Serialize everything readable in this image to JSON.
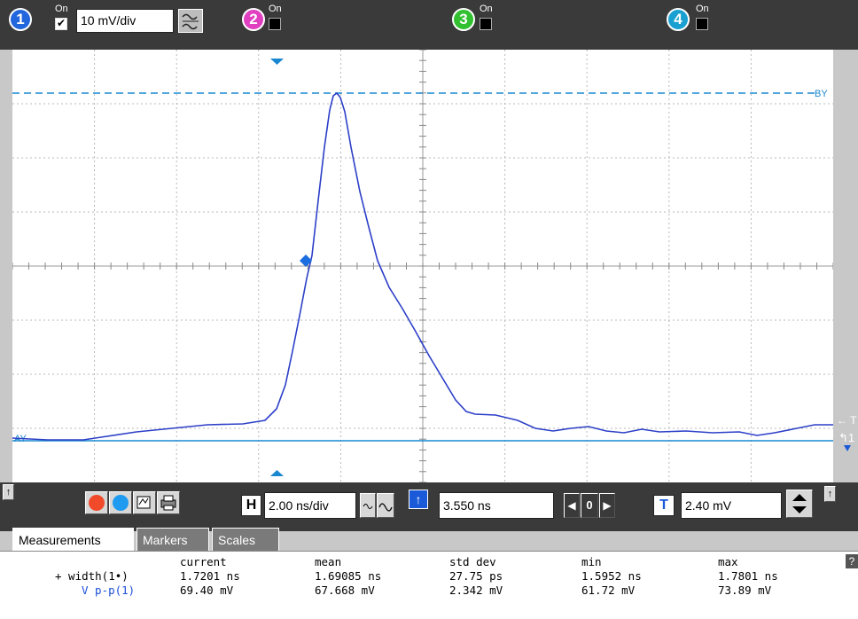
{
  "channels": [
    {
      "number": "1",
      "on_label": "On",
      "checked": true,
      "color": "#2266dd"
    },
    {
      "number": "2",
      "on_label": "On",
      "checked": false,
      "color": "#e040c0"
    },
    {
      "number": "3",
      "on_label": "On",
      "checked": false,
      "color": "#30c030"
    },
    {
      "number": "4",
      "on_label": "On",
      "checked": false,
      "color": "#1a9ad8"
    }
  ],
  "vertical_scale": "10 mV/div",
  "screen": {
    "marker_b_label": "BY",
    "marker_a_label": "AY",
    "trace_color": "#2c3fc8",
    "marker_color": "#1a88d0"
  },
  "timebase": {
    "h_label": "H",
    "scale": "2.00 ns/div",
    "position": "3.550 ns",
    "position_control": "0"
  },
  "trigger": {
    "t_label": "T",
    "level": "2.40 mV"
  },
  "tabs": [
    "Measurements",
    "Markers",
    "Scales"
  ],
  "measurements": {
    "headers": [
      "current",
      "mean",
      "std dev",
      "min",
      "max"
    ],
    "rows": [
      {
        "label": "+ width(1•)",
        "values": [
          "1.7201 ns",
          "1.69085 ns",
          "27.75 ps",
          "1.5952 ns",
          "1.7801 ns"
        ]
      },
      {
        "label": "V p-p(1)",
        "values": [
          "69.40 mV",
          "67.668 mV",
          "2.342 mV",
          "61.72 mV",
          "73.89 mV"
        ]
      }
    ],
    "help_label": "?"
  }
}
